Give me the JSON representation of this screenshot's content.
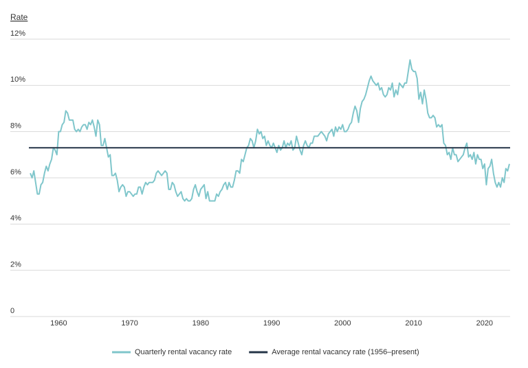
{
  "chart_data": {
    "type": "line",
    "y_axis_label": "Rate",
    "xlim": [
      1955.8,
      2023.6
    ],
    "xticks": [
      1960,
      1970,
      1980,
      1990,
      2000,
      2010,
      2020
    ],
    "ylim": [
      0,
      12
    ],
    "yticks": [
      0,
      {
        "value": 2,
        "label": "2%"
      },
      {
        "value": 4,
        "label": "4%"
      },
      {
        "value": 6,
        "label": "6%"
      },
      {
        "value": 8,
        "label": "8%"
      },
      {
        "value": 10,
        "label": "10%"
      },
      {
        "value": 12,
        "label": "12%"
      }
    ],
    "grid": true,
    "legend": "bottom",
    "x": [
      1956,
      1956.25,
      1956.5,
      1956.75,
      1957,
      1957.25,
      1957.5,
      1957.75,
      1958,
      1958.25,
      1958.5,
      1958.75,
      1959,
      1959.25,
      1959.5,
      1959.75,
      1960,
      1960.25,
      1960.5,
      1960.75,
      1961,
      1961.25,
      1961.5,
      1961.75,
      1962,
      1962.25,
      1962.5,
      1962.75,
      1963,
      1963.25,
      1963.5,
      1963.75,
      1964,
      1964.25,
      1964.5,
      1964.75,
      1965,
      1965.25,
      1965.5,
      1965.75,
      1966,
      1966.25,
      1966.5,
      1966.75,
      1967,
      1967.25,
      1967.5,
      1967.75,
      1968,
      1968.25,
      1968.5,
      1968.75,
      1969,
      1969.25,
      1969.5,
      1969.75,
      1970,
      1970.25,
      1970.5,
      1970.75,
      1971,
      1971.25,
      1971.5,
      1971.75,
      1972,
      1972.25,
      1972.5,
      1972.75,
      1973,
      1973.25,
      1973.5,
      1973.75,
      1974,
      1974.25,
      1974.5,
      1974.75,
      1975,
      1975.25,
      1975.5,
      1975.75,
      1976,
      1976.25,
      1976.5,
      1976.75,
      1977,
      1977.25,
      1977.5,
      1977.75,
      1978,
      1978.25,
      1978.5,
      1978.75,
      1979,
      1979.25,
      1979.5,
      1979.75,
      1980,
      1980.25,
      1980.5,
      1980.75,
      1981,
      1981.25,
      1981.5,
      1981.75,
      1982,
      1982.25,
      1982.5,
      1982.75,
      1983,
      1983.25,
      1983.5,
      1983.75,
      1984,
      1984.25,
      1984.5,
      1984.75,
      1985,
      1985.25,
      1985.5,
      1985.75,
      1986,
      1986.25,
      1986.5,
      1986.75,
      1987,
      1987.25,
      1987.5,
      1987.75,
      1988,
      1988.25,
      1988.5,
      1988.75,
      1989,
      1989.25,
      1989.5,
      1989.75,
      1990,
      1990.25,
      1990.5,
      1990.75,
      1991,
      1991.25,
      1991.5,
      1991.75,
      1992,
      1992.25,
      1992.5,
      1992.75,
      1993,
      1993.25,
      1993.5,
      1993.75,
      1994,
      1994.25,
      1994.5,
      1994.75,
      1995,
      1995.25,
      1995.5,
      1995.75,
      1996,
      1996.25,
      1996.5,
      1996.75,
      1997,
      1997.25,
      1997.5,
      1997.75,
      1998,
      1998.25,
      1998.5,
      1998.75,
      1999,
      1999.25,
      1999.5,
      1999.75,
      2000,
      2000.25,
      2000.5,
      2000.75,
      2001,
      2001.25,
      2001.5,
      2001.75,
      2002,
      2002.25,
      2002.5,
      2002.75,
      2003,
      2003.25,
      2003.5,
      2003.75,
      2004,
      2004.25,
      2004.5,
      2004.75,
      2005,
      2005.25,
      2005.5,
      2005.75,
      2006,
      2006.25,
      2006.5,
      2006.75,
      2007,
      2007.25,
      2007.5,
      2007.75,
      2008,
      2008.25,
      2008.5,
      2008.75,
      2009,
      2009.25,
      2009.5,
      2009.75,
      2010,
      2010.25,
      2010.5,
      2010.75,
      2011,
      2011.25,
      2011.5,
      2011.75,
      2012,
      2012.25,
      2012.5,
      2012.75,
      2013,
      2013.25,
      2013.5,
      2013.75,
      2014,
      2014.25,
      2014.5,
      2014.75,
      2015,
      2015.25,
      2015.5,
      2015.75,
      2016,
      2016.25,
      2016.5,
      2016.75,
      2017,
      2017.25,
      2017.5,
      2017.75,
      2018,
      2018.25,
      2018.5,
      2018.75,
      2019,
      2019.25,
      2019.5,
      2019.75,
      2020,
      2020.25,
      2020.5,
      2020.75,
      2021,
      2021.25,
      2021.5,
      2021.75,
      2022,
      2022.25,
      2022.5,
      2022.75,
      2023,
      2023.25,
      2023.5
    ],
    "series": [
      {
        "name": "Quarterly rental vacancy rate",
        "color": "#7fc6cb",
        "values": [
          6.2,
          6.0,
          6.3,
          5.8,
          5.3,
          5.3,
          5.7,
          5.8,
          6.2,
          6.5,
          6.3,
          6.6,
          6.8,
          7.3,
          7.2,
          7.0,
          8.0,
          8.0,
          8.3,
          8.4,
          8.9,
          8.8,
          8.5,
          8.5,
          8.5,
          8.1,
          8.0,
          8.1,
          8.0,
          8.2,
          8.3,
          8.3,
          8.1,
          8.4,
          8.3,
          8.5,
          8.2,
          7.8,
          8.5,
          8.3,
          7.4,
          7.4,
          7.7,
          7.3,
          6.9,
          7.0,
          6.1,
          6.1,
          6.2,
          5.9,
          5.4,
          5.6,
          5.7,
          5.6,
          5.2,
          5.4,
          5.4,
          5.3,
          5.2,
          5.3,
          5.3,
          5.6,
          5.6,
          5.3,
          5.6,
          5.8,
          5.7,
          5.8,
          5.8,
          5.8,
          5.9,
          6.2,
          6.3,
          6.2,
          6.1,
          6.2,
          6.3,
          6.2,
          5.5,
          5.5,
          5.8,
          5.7,
          5.4,
          5.2,
          5.3,
          5.4,
          5.1,
          5.0,
          5.1,
          5.0,
          5.0,
          5.1,
          5.5,
          5.7,
          5.4,
          5.2,
          5.5,
          5.6,
          5.7,
          5.1,
          5.4,
          5.0,
          5.0,
          5.0,
          5.0,
          5.3,
          5.2,
          5.4,
          5.5,
          5.7,
          5.8,
          5.5,
          5.8,
          5.6,
          5.6,
          5.9,
          6.3,
          6.3,
          6.2,
          6.8,
          6.7,
          7.0,
          7.3,
          7.4,
          7.7,
          7.6,
          7.3,
          7.6,
          8.1,
          7.9,
          8.0,
          7.7,
          7.8,
          7.4,
          7.6,
          7.4,
          7.3,
          7.5,
          7.3,
          7.1,
          7.4,
          7.2,
          7.3,
          7.6,
          7.3,
          7.5,
          7.4,
          7.6,
          7.2,
          7.3,
          7.8,
          7.5,
          7.2,
          7.0,
          7.4,
          7.6,
          7.4,
          7.3,
          7.5,
          7.5,
          7.8,
          7.8,
          7.8,
          7.9,
          8.0,
          7.9,
          7.8,
          7.6,
          7.9,
          8.0,
          8.1,
          7.8,
          8.2,
          8.0,
          8.2,
          8.1,
          8.3,
          8.0,
          8.0,
          8.1,
          8.3,
          8.4,
          8.8,
          9.1,
          8.9,
          8.4,
          9.0,
          9.3,
          9.4,
          9.6,
          9.9,
          10.2,
          10.4,
          10.2,
          10.1,
          10.0,
          10.1,
          9.8,
          9.9,
          9.6,
          9.5,
          9.6,
          9.9,
          9.8,
          10.1,
          9.5,
          9.8,
          9.6,
          10.1,
          10.0,
          9.9,
          10.1,
          10.1,
          10.6,
          11.1,
          10.7,
          10.6,
          10.6,
          10.3,
          9.4,
          9.7,
          9.2,
          9.8,
          9.4,
          8.8,
          8.6,
          8.6,
          8.7,
          8.6,
          8.2,
          8.3,
          8.2,
          8.3,
          7.5,
          7.4,
          7.0,
          7.1,
          6.8,
          7.3,
          7.0,
          7.0,
          6.7,
          6.8,
          6.9,
          7.0,
          7.3,
          7.5,
          6.9,
          7.0,
          6.8,
          7.1,
          6.6,
          7.0,
          6.8,
          6.8,
          6.4,
          6.6,
          5.7,
          6.4,
          6.5,
          6.8,
          6.2,
          5.8,
          5.6,
          5.8,
          5.6,
          6.0,
          5.8,
          6.4,
          6.3,
          6.6
        ]
      }
    ],
    "average": {
      "name": "Average rental vacancy rate (1956–present)",
      "color": "#243447",
      "value": 7.3
    }
  }
}
